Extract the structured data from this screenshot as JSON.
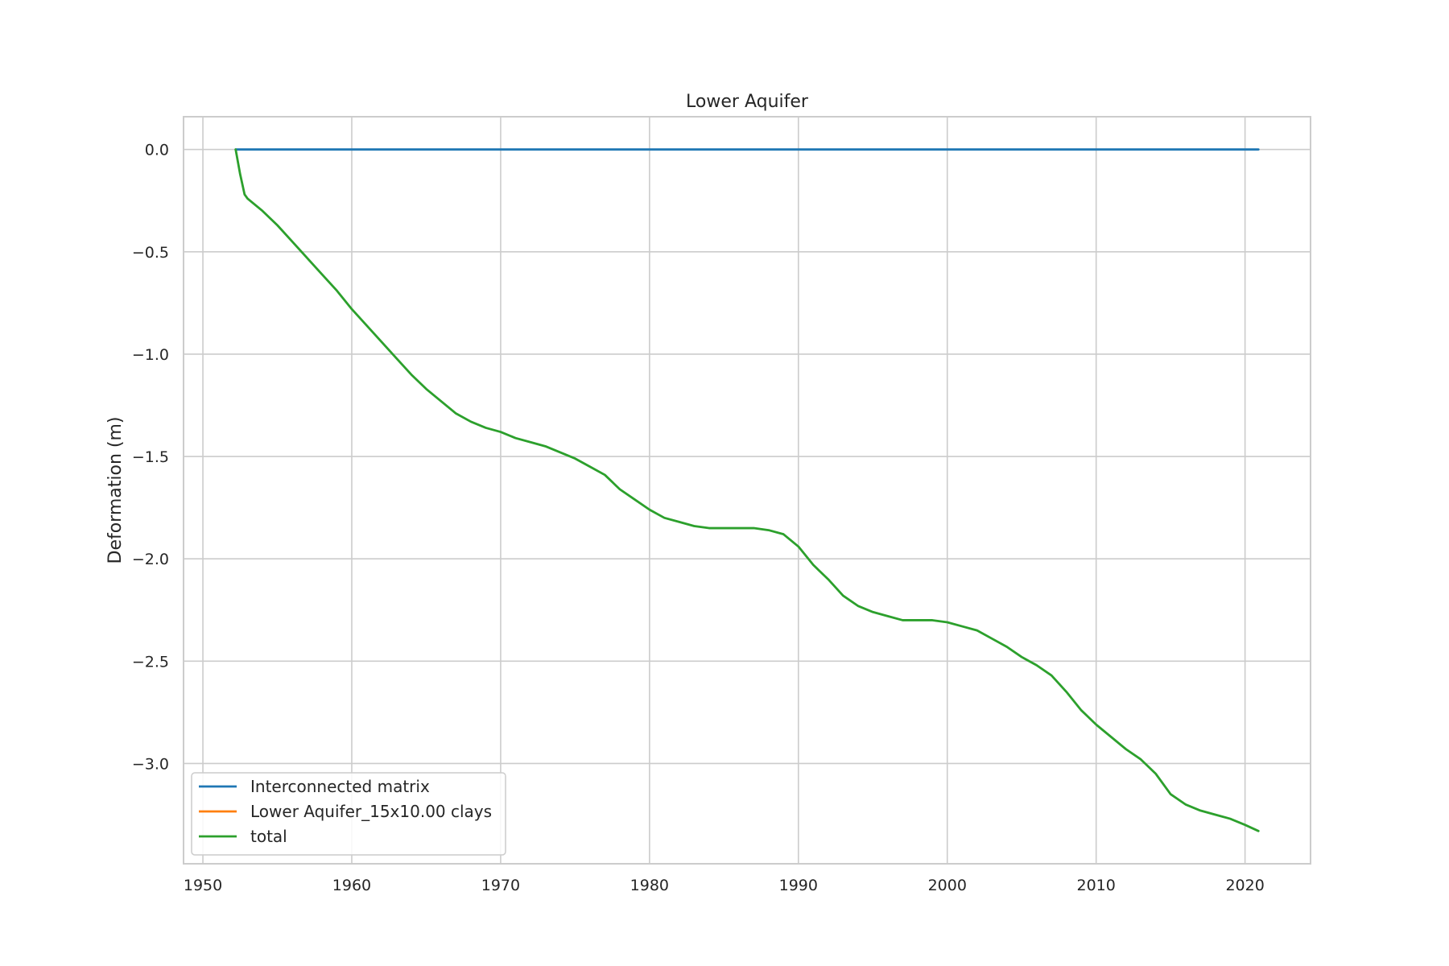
{
  "chart_data": {
    "type": "line",
    "title": "Lower Aquifer",
    "xlabel": "",
    "ylabel": "Deformation (m)",
    "xlim": [
      1948.7,
      2024.4
    ],
    "ylim": [
      -3.49,
      0.16
    ],
    "xticks": [
      1950,
      1960,
      1970,
      1980,
      1990,
      2000,
      2010,
      2020
    ],
    "xtick_labels": [
      "1950",
      "1960",
      "1970",
      "1980",
      "1990",
      "2000",
      "2010",
      "2020"
    ],
    "yticks": [
      0.0,
      -0.5,
      -1.0,
      -1.5,
      -2.0,
      -2.5,
      -3.0
    ],
    "ytick_labels": [
      "0.0",
      "−0.5",
      "−1.0",
      "−1.5",
      "−2.0",
      "−2.5",
      "−3.0"
    ],
    "grid": true,
    "legend_position": "lower-left",
    "series": [
      {
        "name": "Interconnected matrix",
        "color": "#1f77b4",
        "x": [
          1952.2,
          2020.9
        ],
        "y": [
          0.0,
          0.0
        ]
      },
      {
        "name": "Lower Aquifer_15x10.00 clays",
        "color": "#ff7f0e",
        "x": [],
        "y": []
      },
      {
        "name": "total",
        "color": "#2ca02c",
        "x": [
          1952.2,
          1952.5,
          1952.8,
          1953,
          1954,
          1955,
          1956,
          1957,
          1958,
          1959,
          1960,
          1961,
          1962,
          1963,
          1964,
          1965,
          1966,
          1967,
          1968,
          1969,
          1970,
          1971,
          1972,
          1973,
          1974,
          1975,
          1976,
          1977,
          1978,
          1979,
          1980,
          1981,
          1982,
          1983,
          1984,
          1985,
          1986,
          1987,
          1988,
          1989,
          1990,
          1991,
          1992,
          1993,
          1994,
          1995,
          1996,
          1997,
          1998,
          1999,
          2000,
          2001,
          2002,
          2003,
          2004,
          2005,
          2006,
          2007,
          2008,
          2009,
          2010,
          2011,
          2012,
          2013,
          2014,
          2015,
          2016,
          2017,
          2018,
          2019,
          2020,
          2020.9
        ],
        "y": [
          0.0,
          -0.12,
          -0.22,
          -0.24,
          -0.3,
          -0.37,
          -0.45,
          -0.53,
          -0.61,
          -0.69,
          -0.78,
          -0.86,
          -0.94,
          -1.02,
          -1.1,
          -1.17,
          -1.23,
          -1.29,
          -1.33,
          -1.36,
          -1.38,
          -1.41,
          -1.43,
          -1.45,
          -1.48,
          -1.51,
          -1.55,
          -1.59,
          -1.66,
          -1.71,
          -1.76,
          -1.8,
          -1.82,
          -1.84,
          -1.85,
          -1.85,
          -1.85,
          -1.85,
          -1.86,
          -1.88,
          -1.94,
          -2.03,
          -2.1,
          -2.18,
          -2.23,
          -2.26,
          -2.28,
          -2.3,
          -2.3,
          -2.3,
          -2.31,
          -2.33,
          -2.35,
          -2.39,
          -2.43,
          -2.48,
          -2.52,
          -2.57,
          -2.65,
          -2.74,
          -2.81,
          -2.87,
          -2.93,
          -2.98,
          -3.05,
          -3.15,
          -3.2,
          -3.23,
          -3.25,
          -3.27,
          -3.3,
          -3.33
        ]
      }
    ]
  }
}
